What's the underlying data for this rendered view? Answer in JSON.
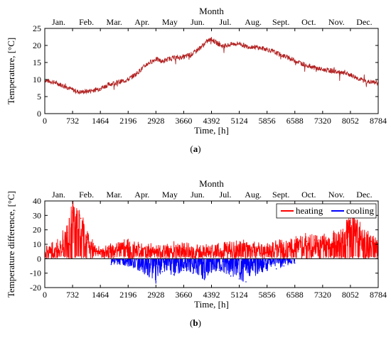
{
  "chart_data": [
    {
      "type": "line",
      "caption_prefix": "(",
      "caption_letter": "a",
      "caption_suffix": ")",
      "xlabel": "Time, [h]",
      "ylabel": "Temperature, [°C]",
      "top_axis_title": "Month",
      "months": [
        "Jan.",
        "Feb.",
        "Mar.",
        "Apr.",
        "May",
        "Jun.",
        "Jul.",
        "Aug.",
        "Sept.",
        "Oct.",
        "Nov.",
        "Dec."
      ],
      "xticks": [
        0,
        732,
        1464,
        2196,
        2928,
        3660,
        4392,
        5124,
        5856,
        6588,
        7320,
        8052,
        8784
      ],
      "yticks": [
        0,
        5,
        10,
        15,
        20,
        25
      ],
      "xlim": [
        0,
        8784
      ],
      "ylim": [
        0,
        25
      ],
      "grid": false,
      "series": [
        {
          "color": "#b22222",
          "x": [
            0,
            300,
            600,
            732,
            900,
            1100,
            1300,
            1464,
            1700,
            2000,
            2196,
            2400,
            2700,
            2928,
            3100,
            3300,
            3660,
            3900,
            4100,
            4300,
            4392,
            4550,
            4700,
            4900,
            5124,
            5300,
            5500,
            5856,
            6100,
            6300,
            6588,
            6800,
            7000,
            7320,
            7600,
            7800,
            8052,
            8300,
            8500,
            8784
          ],
          "y": [
            9.8,
            9.0,
            7.7,
            7.0,
            6.3,
            6.5,
            6.9,
            7.4,
            8.6,
            9.4,
            10.0,
            11.6,
            14.6,
            16.0,
            15.3,
            16.2,
            16.6,
            17.6,
            19.4,
            21.4,
            21.8,
            20.6,
            19.7,
            20.3,
            20.6,
            19.7,
            19.6,
            18.9,
            17.8,
            16.9,
            15.6,
            14.6,
            13.8,
            12.9,
            12.5,
            11.9,
            11.4,
            10.1,
            9.3,
            9.1
          ]
        }
      ]
    },
    {
      "type": "bar",
      "caption_prefix": "(",
      "caption_letter": "b",
      "caption_suffix": ")",
      "xlabel": "Time, [h]",
      "ylabel": "Temperature difference, [°C]",
      "top_axis_title": "Month",
      "months": [
        "Jan.",
        "Feb.",
        "Mar.",
        "Apr.",
        "May",
        "Jun.",
        "Jul.",
        "Aug.",
        "Sept.",
        "Oct.",
        "Nov.",
        "Dec."
      ],
      "xticks": [
        0,
        732,
        1464,
        2196,
        2928,
        3660,
        4392,
        5124,
        5856,
        6588,
        7320,
        8052,
        8784
      ],
      "yticks": [
        -20,
        -10,
        0,
        10,
        20,
        30,
        40
      ],
      "xlim": [
        0,
        8784
      ],
      "ylim": [
        -20,
        40
      ],
      "grid": false,
      "legend_position": "top-right",
      "series": [
        {
          "name": "heating",
          "color": "#ff0000",
          "x": [
            0,
            200,
            400,
            600,
            732,
            850,
            950,
            1100,
            1300,
            1464,
            1700,
            2000,
            2196,
            2500,
            2928,
            3300,
            3660,
            4000,
            4392,
            4800,
            5124,
            5500,
            5856,
            6200,
            6588,
            6900,
            7100,
            7320,
            7600,
            7900,
            8052,
            8200,
            8400,
            8600,
            8784
          ],
          "y": [
            5,
            8,
            10,
            18,
            32,
            25,
            28,
            15,
            8,
            5,
            7,
            8,
            9,
            8,
            6,
            7,
            8,
            6,
            7,
            8,
            9,
            8,
            8,
            9,
            10,
            12,
            13,
            12,
            14,
            18,
            25,
            22,
            14,
            12,
            10
          ]
        },
        {
          "name": "cooling",
          "color": "#0000ff",
          "x": [
            1750,
            2196,
            2500,
            2750,
            2928,
            3100,
            3400,
            3660,
            3900,
            4200,
            4392,
            4600,
            4900,
            5124,
            5300,
            5600,
            5856,
            6100,
            6300,
            6588
          ],
          "y": [
            -4,
            -5,
            -8,
            -12,
            -16,
            -9,
            -11,
            -8,
            -10,
            -14,
            -9,
            -8,
            -12,
            -14,
            -16,
            -10,
            -8,
            -7,
            -5,
            -3
          ]
        }
      ]
    }
  ]
}
